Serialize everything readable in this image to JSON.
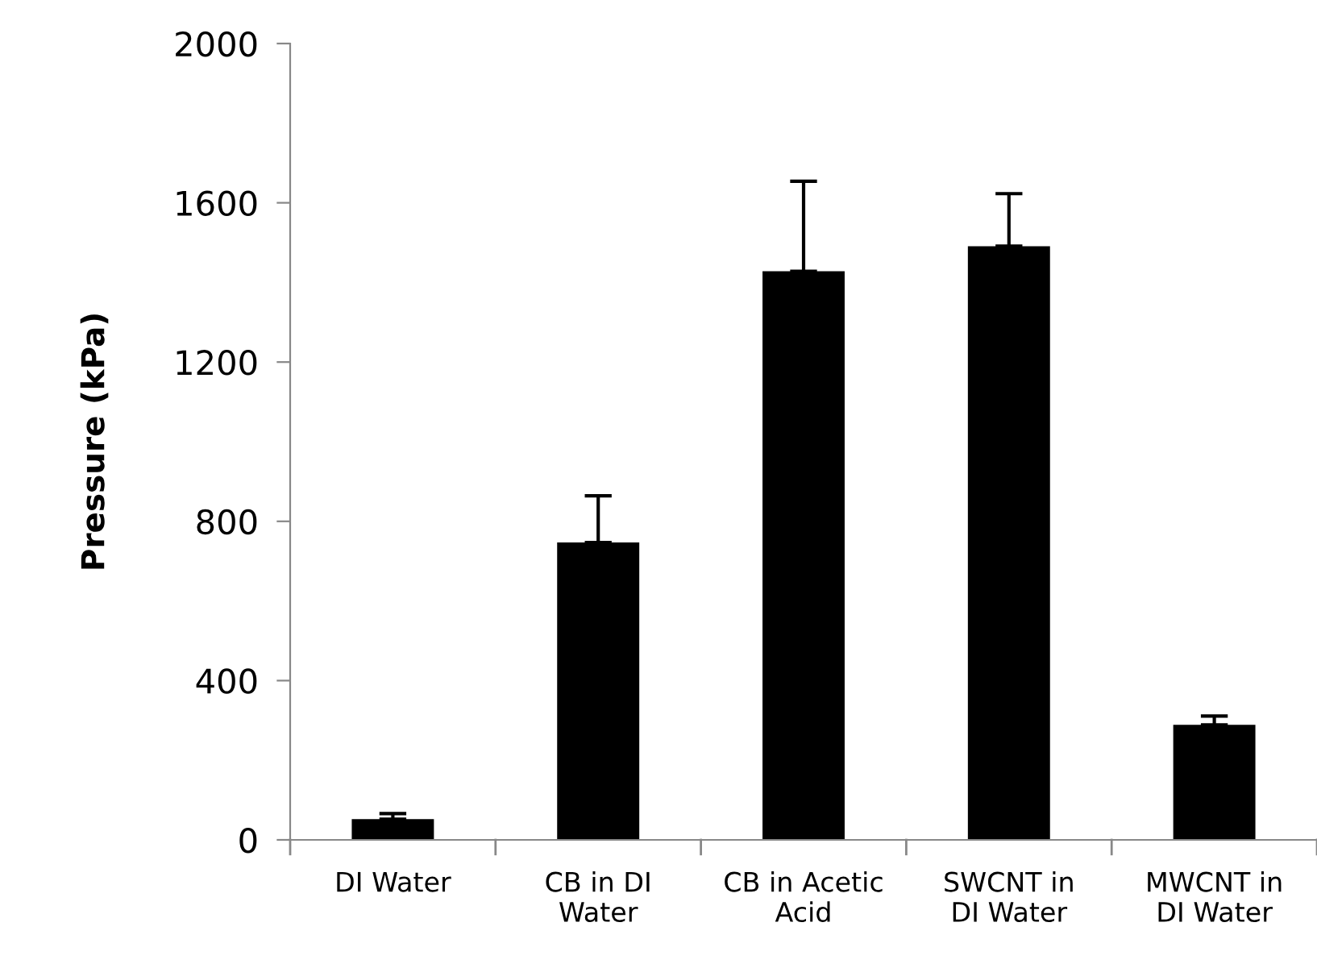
{
  "chart_data": {
    "type": "bar",
    "ylabel": "Pressure (kPa)",
    "categories": [
      "DI Water",
      "CB in DI\nWater",
      "CB in Acetic\nAcid",
      "SWCNT in\nDI Water",
      "MWCNT in\nDI Water"
    ],
    "values": [
      52,
      747,
      1428,
      1491,
      289
    ],
    "errors": [
      [
        52,
        66
      ],
      [
        747,
        864
      ],
      [
        1428,
        1654
      ],
      [
        1491,
        1623
      ],
      [
        289,
        311
      ]
    ],
    "color": "#000000",
    "ylim": [
      0,
      2000
    ],
    "yticks": [
      0,
      400,
      800,
      1200,
      1600,
      2000
    ],
    "grid": false,
    "legend": false
  }
}
